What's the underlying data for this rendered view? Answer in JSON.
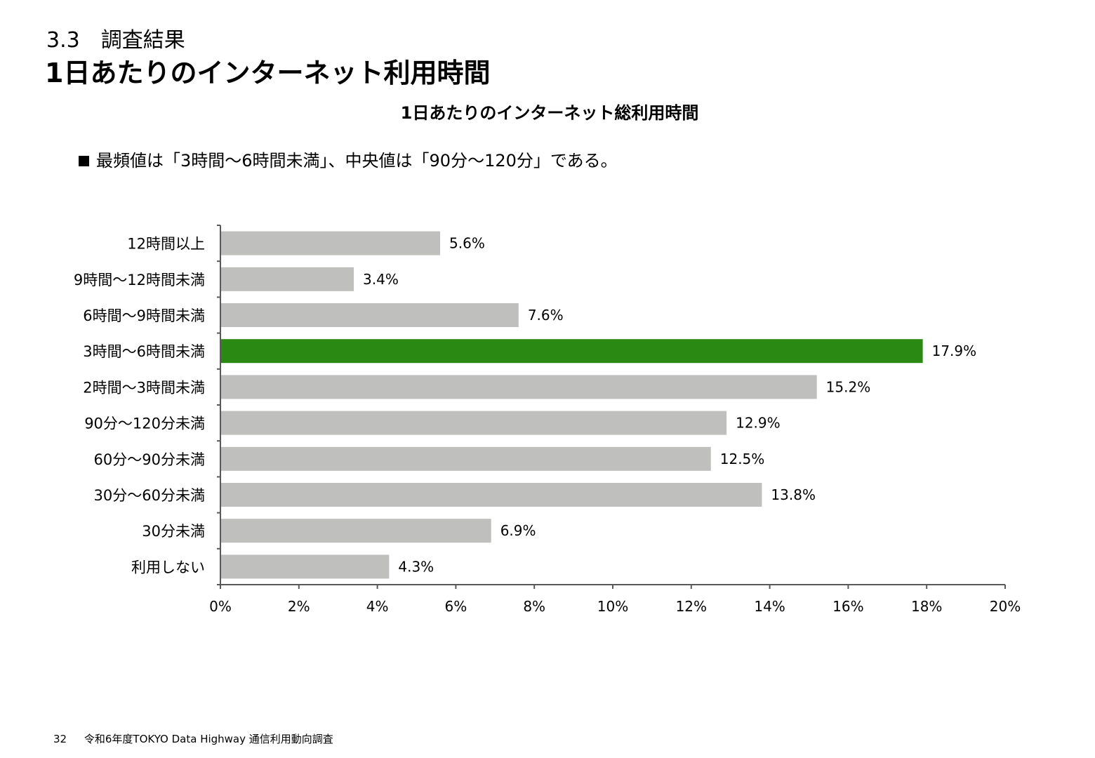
{
  "header": {
    "section_number": "3.3　調査結果",
    "title": "1日あたりのインターネット利用時間"
  },
  "summary": {
    "bullet": "最頻値は「3時間～6時間未満」、中央値は「90分～120分」である。"
  },
  "footer": {
    "page_number": "32",
    "source": "令和6年度TOKYO Data Highway 通信利用動向調査"
  },
  "colors": {
    "bar_default": "#bfc0be",
    "bar_highlight": "#2a8912",
    "axis": "#595959"
  },
  "chart_data": {
    "type": "bar",
    "orientation": "horizontal",
    "title": "1日あたりのインターネット総利用時間",
    "categories": [
      "12時間以上",
      "9時間～12時間未満",
      "6時間～9時間未満",
      "3時間～6時間未満",
      "2時間～3時間未満",
      "90分～120分未満",
      "60分～90分未満",
      "30分～60分未満",
      "30分未満",
      "利用しない"
    ],
    "values": [
      5.6,
      3.4,
      7.6,
      17.9,
      15.2,
      12.9,
      12.5,
      13.8,
      6.9,
      4.3
    ],
    "value_labels": [
      "5.6%",
      "3.4%",
      "7.6%",
      "17.9%",
      "15.2%",
      "12.9%",
      "12.5%",
      "13.8%",
      "6.9%",
      "4.3%"
    ],
    "highlight": "3時間～6時間未満",
    "xlim": [
      0,
      20
    ],
    "xticks": [
      0,
      2,
      4,
      6,
      8,
      10,
      12,
      14,
      16,
      18,
      20
    ],
    "xtick_labels": [
      "0%",
      "2%",
      "4%",
      "6%",
      "8%",
      "10%",
      "12%",
      "14%",
      "16%",
      "18%",
      "20%"
    ],
    "grid": false,
    "legend": "none"
  }
}
